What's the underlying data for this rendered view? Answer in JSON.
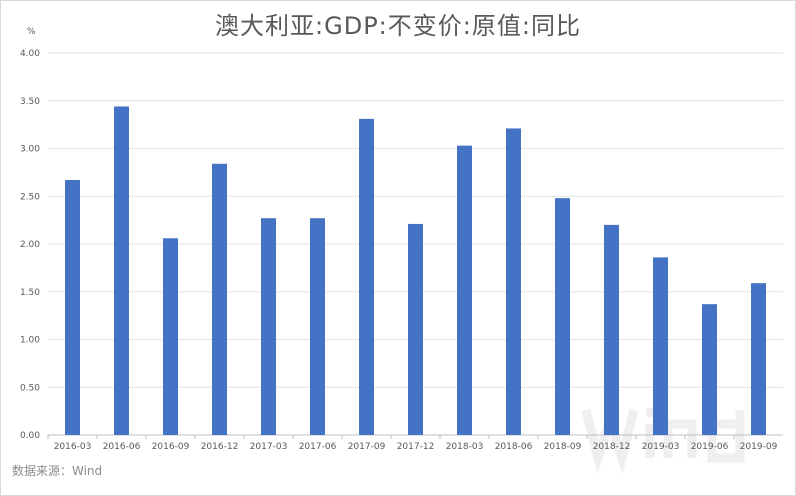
{
  "chart_data": {
    "type": "bar",
    "title": "澳大利亚:GDP:不变价:原值:同比",
    "ylabel": "%",
    "xlabel": "",
    "ylim": [
      0,
      4
    ],
    "yticks": [
      "0.00",
      "0.50",
      "1.00",
      "1.50",
      "2.00",
      "2.50",
      "3.00",
      "3.50",
      "4.00"
    ],
    "grid": true,
    "categories": [
      "2016-03",
      "2016-06",
      "2016-09",
      "2016-12",
      "2017-03",
      "2017-06",
      "2017-09",
      "2017-12",
      "2018-03",
      "2018-06",
      "2018-09",
      "2018-12",
      "2019-03",
      "2019-06",
      "2019-09"
    ],
    "values": [
      2.67,
      3.44,
      2.06,
      2.84,
      2.27,
      2.27,
      3.31,
      2.21,
      3.03,
      3.21,
      2.48,
      2.2,
      1.86,
      1.37,
      1.59
    ],
    "bar_color": "#4472c4"
  },
  "source": "数据来源：Wind",
  "watermark": "Wind"
}
